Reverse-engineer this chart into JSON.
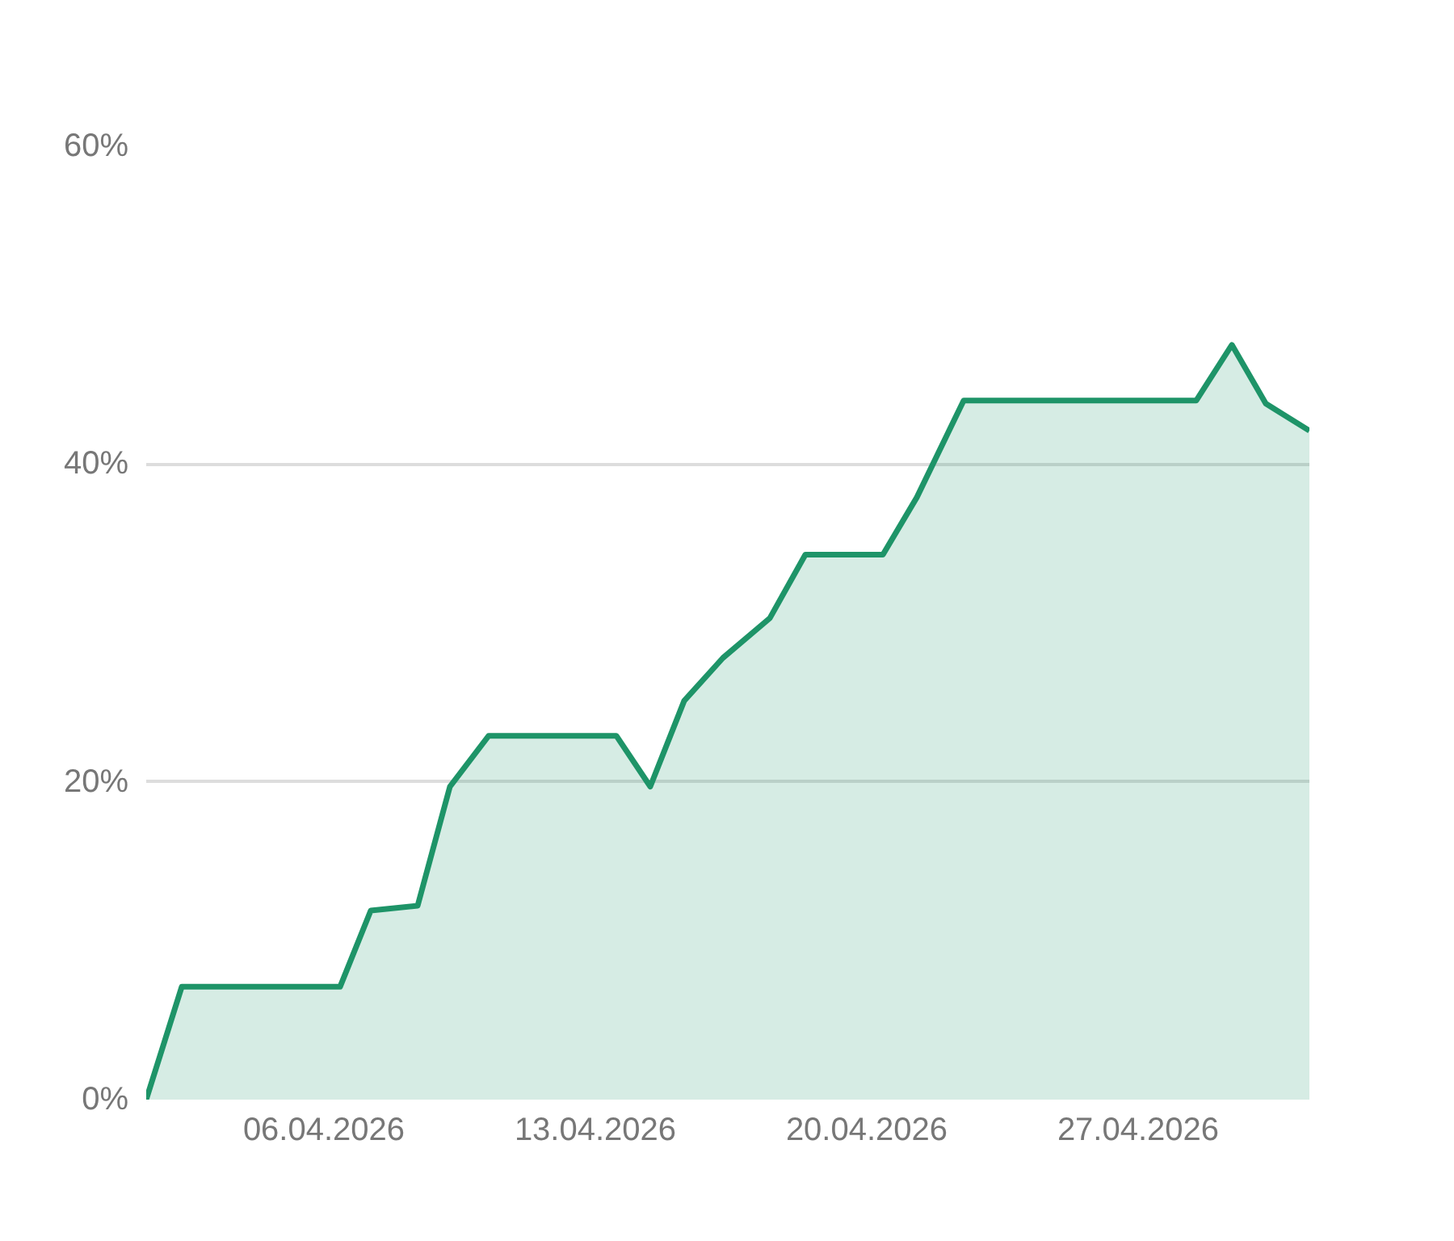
{
  "chart_data": {
    "type": "area",
    "x": [
      "2026-04-01T10:00",
      "2026-04-02T08:00",
      "2026-04-06T10:00",
      "2026-04-07T05:00",
      "2026-04-08T10:00",
      "2026-04-09T06:00",
      "2026-04-10T06:00",
      "2026-04-13T13:00",
      "2026-04-14T10:00",
      "2026-04-15T07:00",
      "2026-04-16T07:00",
      "2026-04-17T12:00",
      "2026-04-18T10:00",
      "2026-04-20T10:00",
      "2026-04-21T07:00",
      "2026-04-22T12:00",
      "2026-04-28T12:00",
      "2026-04-29T10:00",
      "2026-04-30T07:00",
      "2026-05-01T10:00"
    ],
    "series": [
      {
        "color": "#1e9468",
        "values": [
          0,
          7.1,
          7.1,
          11.9,
          12.2,
          19.7,
          22.9,
          22.9,
          19.7,
          25.1,
          27.8,
          30.3,
          34.3,
          34.3,
          37.9,
          44,
          44,
          47.5,
          43.8,
          42.1
        ]
      }
    ],
    "xlim": [
      "2026-04-01T10:00",
      "2026-05-01T10:00"
    ],
    "xticks": [
      {
        "value": "2026-04-06",
        "label": "06.04.2026"
      },
      {
        "value": "2026-04-13",
        "label": "13.04.2026"
      },
      {
        "value": "2026-04-20",
        "label": "20.04.2026"
      },
      {
        "value": "2026-04-27",
        "label": "27.04.2026"
      }
    ],
    "ylim": [
      0,
      60
    ],
    "yticks": [
      {
        "value": 0,
        "label": "0%"
      },
      {
        "value": 20,
        "label": "20%"
      },
      {
        "value": 40,
        "label": "40%"
      },
      {
        "value": 60,
        "label": "60%"
      }
    ],
    "grid": "y",
    "line_style": "solid"
  }
}
